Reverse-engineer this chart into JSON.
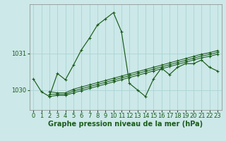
{
  "title": "Graphe pression niveau de la mer (hPa)",
  "bg_color": "#cce8e8",
  "grid_color": "#aad4d4",
  "line_color": "#1a5c1a",
  "xlim": [
    -0.5,
    23.5
  ],
  "ylim": [
    1029.45,
    1032.35
  ],
  "ytick_vals": [
    1030,
    1031
  ],
  "xticks": [
    0,
    1,
    2,
    3,
    4,
    5,
    6,
    7,
    8,
    9,
    10,
    11,
    12,
    13,
    14,
    15,
    16,
    17,
    18,
    19,
    20,
    21,
    22,
    23
  ],
  "main_x": [
    0,
    1,
    2,
    3,
    4,
    5,
    6,
    7,
    8,
    9,
    10,
    11,
    12,
    13,
    14,
    15,
    16,
    17,
    18,
    19,
    20,
    21,
    22,
    23
  ],
  "main_y": [
    1030.3,
    1029.95,
    1029.82,
    1030.45,
    1030.28,
    1030.68,
    1031.1,
    1031.42,
    1031.78,
    1031.95,
    1032.12,
    1031.6,
    1030.18,
    1030.0,
    1029.82,
    1030.3,
    1030.6,
    1030.42,
    1030.62,
    1030.72,
    1030.72,
    1030.82,
    1030.62,
    1030.52
  ],
  "trend1_x": [
    2,
    3,
    4,
    5,
    6,
    7,
    8,
    9,
    10,
    11,
    12,
    13,
    14,
    15,
    16,
    17,
    18,
    19,
    20,
    21,
    22,
    23
  ],
  "trend1_y": [
    1029.82,
    1029.85,
    1029.85,
    1029.92,
    1029.98,
    1030.04,
    1030.1,
    1030.16,
    1030.22,
    1030.28,
    1030.34,
    1030.4,
    1030.46,
    1030.52,
    1030.58,
    1030.64,
    1030.7,
    1030.76,
    1030.82,
    1030.88,
    1030.92,
    1030.98
  ],
  "trend2_x": [
    2,
    3,
    4,
    5,
    6,
    7,
    8,
    9,
    10,
    11,
    12,
    13,
    14,
    15,
    16,
    17,
    18,
    19,
    20,
    21,
    22,
    23
  ],
  "trend2_y": [
    1029.88,
    1029.88,
    1029.88,
    1029.97,
    1030.03,
    1030.09,
    1030.15,
    1030.21,
    1030.27,
    1030.33,
    1030.39,
    1030.45,
    1030.51,
    1030.57,
    1030.63,
    1030.69,
    1030.75,
    1030.81,
    1030.87,
    1030.93,
    1030.97,
    1031.03
  ],
  "trend3_x": [
    2,
    3,
    4,
    5,
    6,
    7,
    8,
    9,
    10,
    11,
    12,
    13,
    14,
    15,
    16,
    17,
    18,
    19,
    20,
    21,
    22,
    23
  ],
  "trend3_y": [
    1029.95,
    1029.92,
    1029.92,
    1030.02,
    1030.08,
    1030.14,
    1030.2,
    1030.26,
    1030.32,
    1030.38,
    1030.44,
    1030.5,
    1030.56,
    1030.62,
    1030.68,
    1030.74,
    1030.8,
    1030.86,
    1030.92,
    1030.98,
    1031.02,
    1031.08
  ],
  "tick_fontsize": 6,
  "label_fontsize": 7
}
